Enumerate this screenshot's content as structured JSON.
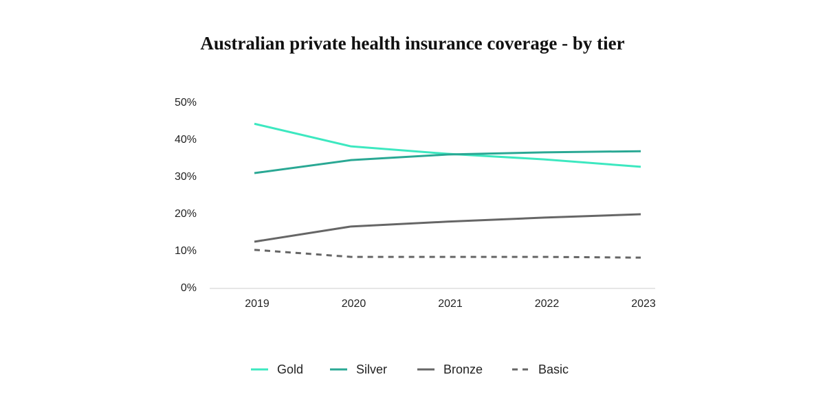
{
  "chart_data": {
    "type": "line",
    "title": "Australian private health insurance coverage - by tier",
    "categories": [
      "2019",
      "2020",
      "2021",
      "2022",
      "2023"
    ],
    "series": [
      {
        "name": "Gold",
        "color": "#3de8c0",
        "dash": "solid",
        "values": [
          44.4,
          38.3,
          36.3,
          34.8,
          32.8
        ]
      },
      {
        "name": "Silver",
        "color": "#2aa894",
        "dash": "solid",
        "values": [
          31.1,
          34.6,
          36.1,
          36.7,
          37.0
        ]
      },
      {
        "name": "Bronze",
        "color": "#666666",
        "dash": "solid",
        "values": [
          12.6,
          16.7,
          18.0,
          19.1,
          20.0
        ]
      },
      {
        "name": "Basic",
        "color": "#666666",
        "dash": "dashed",
        "values": [
          10.4,
          8.5,
          8.5,
          8.5,
          8.3
        ]
      }
    ],
    "ylim": [
      0,
      50
    ],
    "yticks": [
      {
        "value": 0,
        "label": "0%"
      },
      {
        "value": 10,
        "label": "10%"
      },
      {
        "value": 20,
        "label": "20%"
      },
      {
        "value": 30,
        "label": "30%"
      },
      {
        "value": 40,
        "label": "40%"
      },
      {
        "value": 50,
        "label": "50%"
      }
    ],
    "grid": false,
    "legend": "bottom"
  }
}
